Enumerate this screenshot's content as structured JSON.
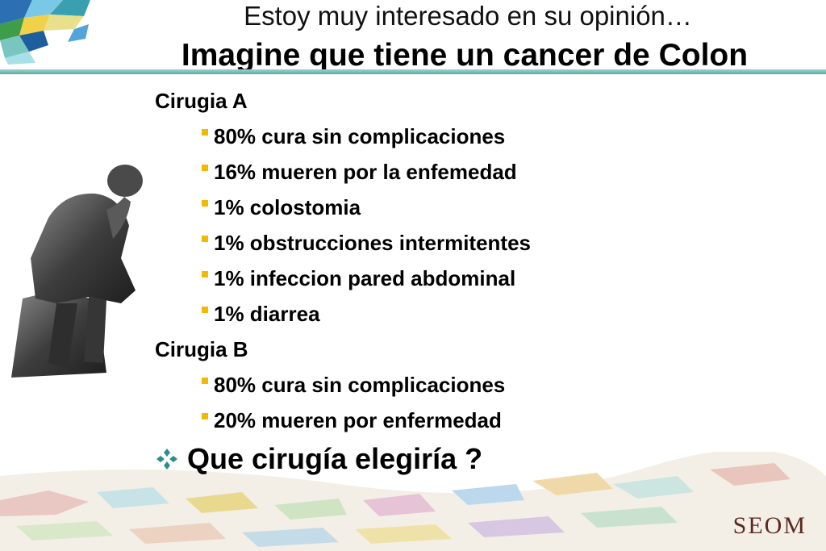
{
  "slide": {
    "title_line1": "Estoy muy interesado en su opinión…",
    "title_line2": "Imagine  que tiene un cancer de Colon"
  },
  "sections": [
    {
      "label": "Cirugia A",
      "items": [
        "80% cura sin complicaciones",
        "16% mueren por la enfemedad",
        "1% colostomia",
        "1% obstrucciones intermitentes",
        "1% infeccion pared abdominal",
        "1% diarrea"
      ]
    },
    {
      "label": "Cirugia B",
      "items": [
        "80% cura sin complicaciones",
        "20% mueren por enfermedad"
      ]
    }
  ],
  "question": "Que cirugía elegiría ?",
  "logo_text": "SEOM",
  "colors": {
    "bullet": "#f5b800",
    "accent_rule": "#5aa9a4",
    "diamond": "#2a8f8a"
  },
  "icons": {
    "statue": "thinker-statue-icon",
    "question_bullet": "four-diamond-icon"
  }
}
